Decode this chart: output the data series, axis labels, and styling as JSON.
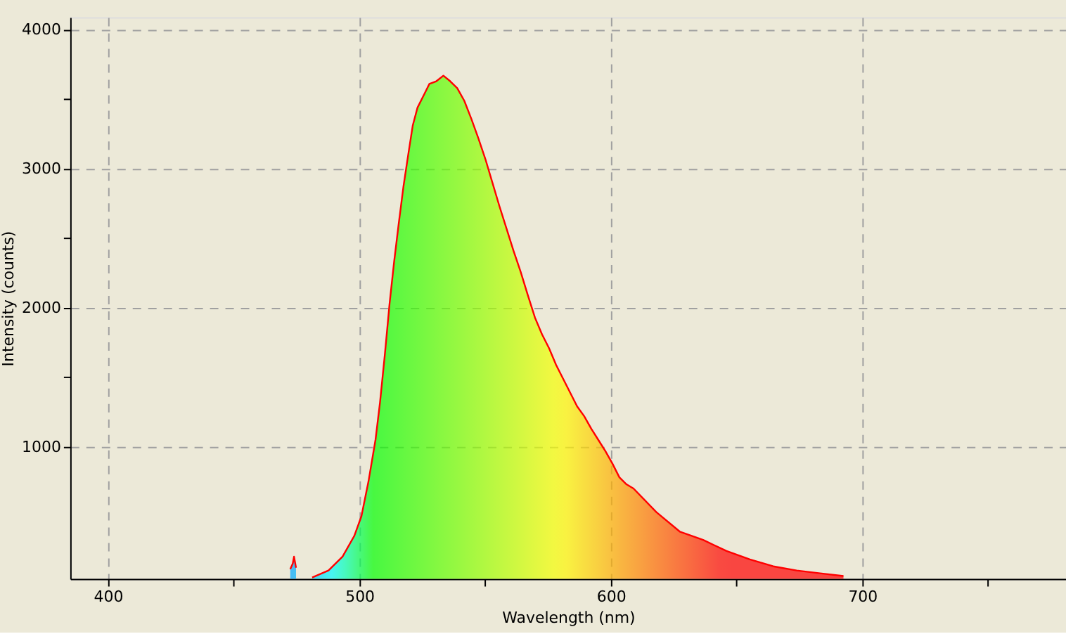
{
  "chart_data": {
    "type": "area",
    "xlabel": "Wavelength (nm)",
    "ylabel": "Intensity (counts)",
    "x": [
      472.5,
      473.5,
      474.0,
      474.8,
      478.0,
      481.2,
      487.7,
      493.3,
      498.0,
      500.8,
      503.6,
      506.4,
      508.2,
      510.1,
      512.0,
      513.8,
      515.6,
      517.5,
      519.4,
      521.2,
      523.1,
      525.9,
      527.8,
      530.6,
      533.4,
      536.1,
      538.9,
      541.7,
      544.5,
      547.3,
      550.1,
      552.9,
      555.7,
      558.5,
      561.3,
      564.1,
      567.0,
      569.8,
      572.6,
      575.4,
      578.2,
      581.0,
      583.8,
      586.6,
      589.4,
      592.2,
      595.0,
      597.8,
      600.6,
      603.4,
      606.2,
      609.0,
      618.1,
      627.4,
      636.7,
      646.0,
      655.3,
      664.6,
      673.9,
      683.2,
      692.5
    ],
    "series": [
      {
        "color": "#ff0000",
        "values": [
          120,
          160,
          210,
          130,
          null,
          60,
          110,
          210,
          360,
          500,
          750,
          1050,
          1320,
          1660,
          2030,
          2330,
          2600,
          2870,
          3100,
          3310,
          3440,
          3540,
          3610,
          3630,
          3670,
          3630,
          3580,
          3490,
          3360,
          3220,
          3070,
          2900,
          2730,
          2570,
          2410,
          2260,
          2090,
          1930,
          1810,
          1710,
          1590,
          1490,
          1390,
          1290,
          1220,
          1130,
          1050,
          970,
          880,
          780,
          730,
          700,
          530,
          390,
          330,
          250,
          190,
          140,
          110,
          90,
          70
        ]
      }
    ],
    "xlim": [
      385,
      781
    ],
    "ylim": [
      50,
      4090
    ],
    "xticks": [
      400,
      {
        "value": 450,
        "label": null
      },
      500,
      {
        "value": 550,
        "label": null
      },
      600,
      {
        "value": 650,
        "label": null
      },
      700,
      {
        "value": 750,
        "label": null
      }
    ],
    "yticks": [
      1000,
      {
        "value": 1500,
        "label": null
      },
      2000,
      {
        "value": 2500,
        "label": null
      },
      3000,
      {
        "value": 3500,
        "label": null
      },
      4000
    ],
    "grid": true
  }
}
